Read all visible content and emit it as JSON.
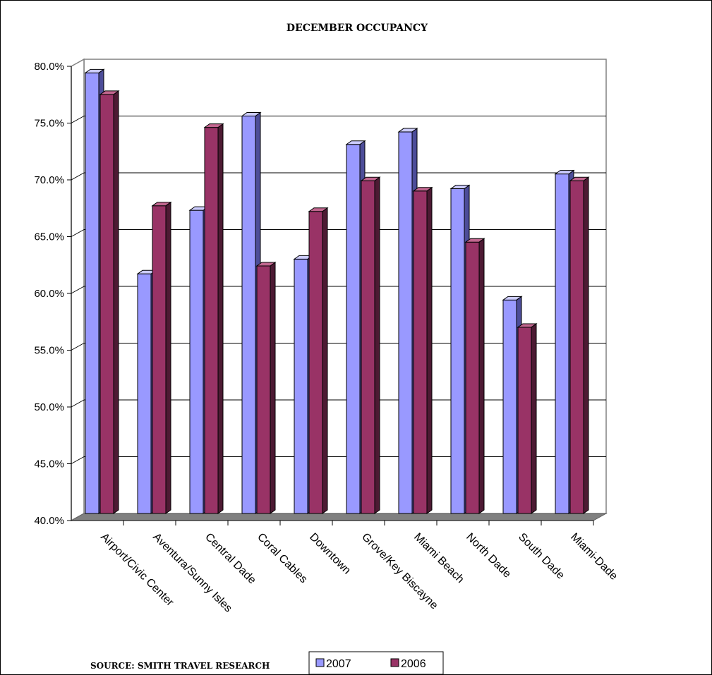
{
  "chart_data": {
    "type": "bar",
    "title": "DECEMBER OCCUPANCY",
    "categories": [
      "Airport/Civic Center",
      "Aventura/Sunny Isles",
      "Central Dade",
      "Coral Cables",
      "Downtown",
      "Grove/Key Biscayne",
      "Miami Beach",
      "North Dade",
      "South Dade",
      "Miami-Dade"
    ],
    "series": [
      {
        "name": "2007",
        "color": "#9999ff",
        "values": [
          78.8,
          61.1,
          66.7,
          75.0,
          62.4,
          72.5,
          73.6,
          68.6,
          58.8,
          69.9
        ]
      },
      {
        "name": "2006",
        "color": "#993366",
        "values": [
          76.9,
          67.1,
          74.0,
          61.8,
          66.6,
          69.3,
          68.4,
          63.9,
          56.4,
          69.3
        ]
      }
    ],
    "ylim": [
      40,
      80
    ],
    "yticks": [
      "40.0%",
      "45.0%",
      "50.0%",
      "55.0%",
      "60.0%",
      "65.0%",
      "70.0%",
      "75.0%",
      "80.0%"
    ],
    "ytick_values": [
      40,
      45,
      50,
      55,
      60,
      65,
      70,
      75,
      80
    ],
    "grid": true,
    "legend_position": "bottom-center",
    "source": "SOURCE: SMITH TRAVEL RESEARCH"
  }
}
